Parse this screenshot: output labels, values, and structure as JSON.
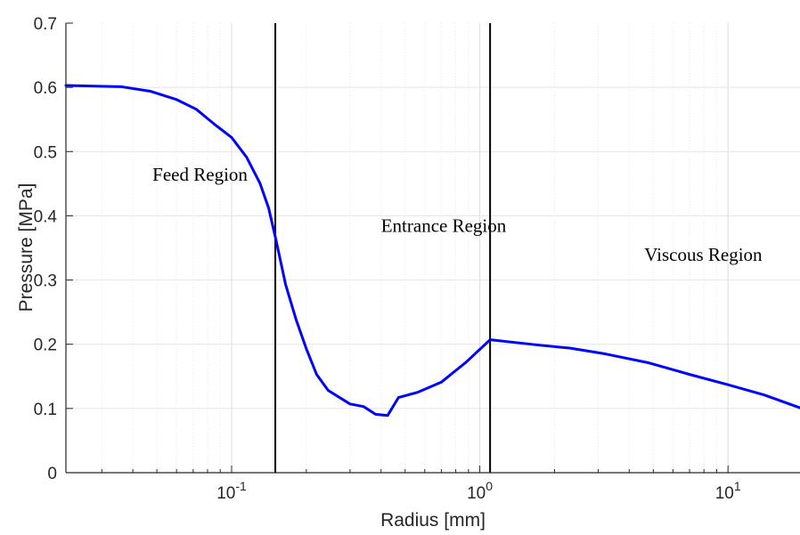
{
  "chart_data": {
    "type": "line",
    "xlabel": "Radius [mm]",
    "ylabel": "Pressure [MPa]",
    "x_scale": "log",
    "xlim": [
      0.0215,
      19.5
    ],
    "ylim": [
      0,
      0.7
    ],
    "grid": true,
    "x_ticks": [
      {
        "value": 0.1,
        "base": "10",
        "exp": "-1"
      },
      {
        "value": 1,
        "base": "10",
        "exp": "0"
      },
      {
        "value": 10,
        "base": "10",
        "exp": "1"
      }
    ],
    "y_ticks": [
      {
        "value": 0,
        "label": "0"
      },
      {
        "value": 0.1,
        "label": "0.1"
      },
      {
        "value": 0.2,
        "label": "0.2"
      },
      {
        "value": 0.3,
        "label": "0.3"
      },
      {
        "value": 0.4,
        "label": "0.4"
      },
      {
        "value": 0.5,
        "label": "0.5"
      },
      {
        "value": 0.6,
        "label": "0.6"
      },
      {
        "value": 0.7,
        "label": "0.7"
      }
    ],
    "vertical_lines": [
      0.15,
      1.1
    ],
    "annotations": [
      {
        "text": "Feed Region",
        "x": 0.048,
        "y": 0.455
      },
      {
        "text": "Entrance Region",
        "x": 0.4,
        "y": 0.375
      },
      {
        "text": "Viscous Region",
        "x": 4.6,
        "y": 0.33
      }
    ],
    "series": [
      {
        "color": "#0000ff",
        "x": [
          0.0215,
          0.036,
          0.047,
          0.06,
          0.072,
          0.085,
          0.1,
          0.115,
          0.13,
          0.141,
          0.151,
          0.165,
          0.182,
          0.2,
          0.22,
          0.245,
          0.3,
          0.34,
          0.38,
          0.425,
          0.47,
          0.56,
          0.7,
          0.88,
          1.1,
          1.7,
          2.3,
          3.2,
          4.8,
          7.0,
          10.0,
          14.0,
          19.5
        ],
        "y": [
          0.603,
          0.601,
          0.594,
          0.581,
          0.566,
          0.543,
          0.522,
          0.491,
          0.451,
          0.412,
          0.362,
          0.293,
          0.238,
          0.193,
          0.153,
          0.128,
          0.107,
          0.103,
          0.091,
          0.089,
          0.117,
          0.125,
          0.141,
          0.172,
          0.207,
          0.199,
          0.194,
          0.185,
          0.171,
          0.153,
          0.137,
          0.121,
          0.101
        ]
      }
    ]
  }
}
